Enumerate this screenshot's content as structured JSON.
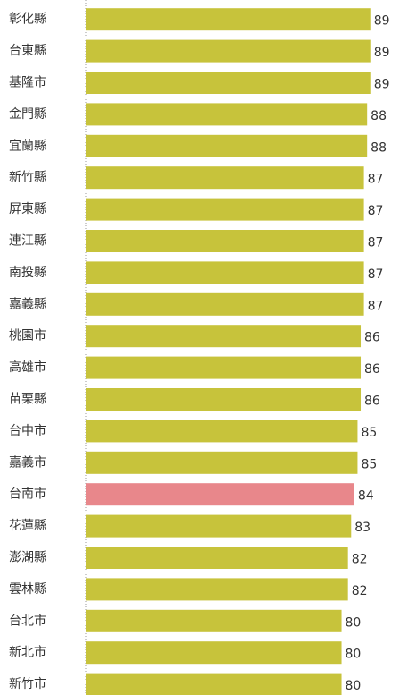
{
  "chart_data": {
    "type": "bar",
    "orientation": "horizontal",
    "categories": [
      "彰化縣",
      "台東縣",
      "基隆市",
      "金門縣",
      "宜蘭縣",
      "新竹縣",
      "屏東縣",
      "連江縣",
      "南投縣",
      "嘉義縣",
      "桃園市",
      "高雄市",
      "苗栗縣",
      "台中市",
      "嘉義市",
      "台南市",
      "花蓮縣",
      "澎湖縣",
      "雲林縣",
      "台北市",
      "新北市",
      "新竹市"
    ],
    "values": [
      89,
      89,
      89,
      88,
      88,
      87,
      87,
      87,
      87,
      87,
      86,
      86,
      86,
      85,
      85,
      84,
      83,
      82,
      82,
      80,
      80,
      80
    ],
    "colors": [
      "#c7c33b",
      "#c7c33b",
      "#c7c33b",
      "#c7c33b",
      "#c7c33b",
      "#c7c33b",
      "#c7c33b",
      "#c7c33b",
      "#c7c33b",
      "#c7c33b",
      "#c7c33b",
      "#c7c33b",
      "#c7c33b",
      "#c7c33b",
      "#c7c33b",
      "#e8878b",
      "#c7c33b",
      "#c7c33b",
      "#c7c33b",
      "#c7c33b",
      "#c7c33b",
      "#c7c33b"
    ],
    "xlim": [
      0,
      98
    ]
  }
}
